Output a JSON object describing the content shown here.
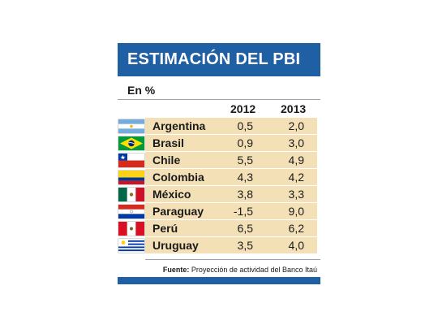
{
  "chart_data": {
    "type": "table",
    "title": "ESTIMACIÓN DEL PBI",
    "unit": "En %",
    "columns": [
      "2012",
      "2013"
    ],
    "rows": [
      {
        "country": "Argentina",
        "flag": "argentina-flag-icon",
        "values": [
          "0,5",
          "2,0"
        ]
      },
      {
        "country": "Brasil",
        "flag": "brazil-flag-icon",
        "values": [
          "0,9",
          "3,0"
        ]
      },
      {
        "country": "Chile",
        "flag": "chile-flag-icon",
        "values": [
          "5,5",
          "4,9"
        ]
      },
      {
        "country": "Colombia",
        "flag": "colombia-flag-icon",
        "values": [
          "4,3",
          "4,2"
        ]
      },
      {
        "country": "México",
        "flag": "mexico-flag-icon",
        "values": [
          "3,8",
          "3,3"
        ]
      },
      {
        "country": "Paraguay",
        "flag": "paraguay-flag-icon",
        "values": [
          "-1,5",
          "9,0"
        ]
      },
      {
        "country": "Perú",
        "flag": "peru-flag-icon",
        "values": [
          "6,5",
          "6,2"
        ]
      },
      {
        "country": "Uruguay",
        "flag": "uruguay-flag-icon",
        "values": [
          "3,5",
          "4,0"
        ]
      }
    ],
    "source_label": "Fuente:",
    "source_text": "Proyección de actividad del Banco Itaú"
  },
  "colors": {
    "header": "#1f5fa3",
    "row_band": "#f4e0b6"
  }
}
